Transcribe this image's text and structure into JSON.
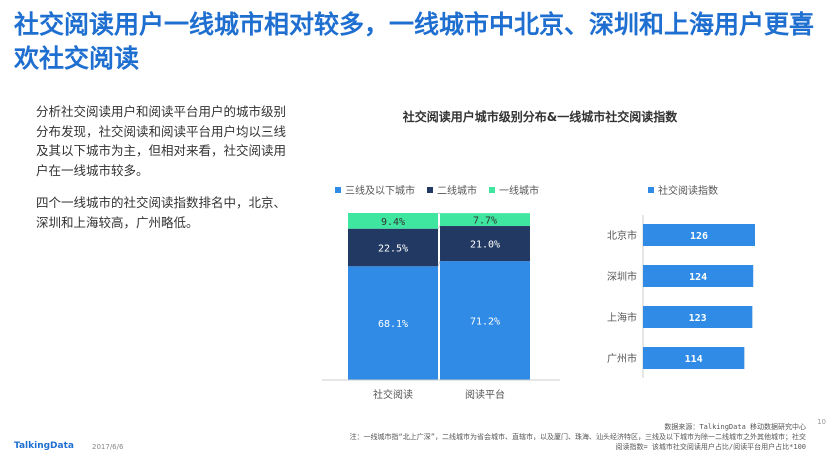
{
  "title": "社交阅读用户一线城市相对较多，一线城市中北京、深圳和上海用户更喜欢社交阅读",
  "description": [
    "分析社交阅读用户和阅读平台用户的城市级别分布发现，社交阅读和阅读平台用户均以三线及其以下城市为主，但相对来看，社交阅读用户在一线城市较多。",
    "四个一线城市的社交阅读指数排名中，北京、深圳和上海较高，广州略低。"
  ],
  "chart_title": "社交阅读用户城市级别分布&一线城市社交阅读指数",
  "colors": {
    "tier3": "#2f8be6",
    "tier2": "#223a63",
    "tier1": "#3ee6a0",
    "index": "#2f8be6",
    "title": "#1f6fd1"
  },
  "chart_data": [
    {
      "type": "bar",
      "stacked": true,
      "categories": [
        "社交阅读",
        "阅读平台"
      ],
      "series": [
        {
          "name": "三线及以下城市",
          "values": [
            68.1,
            71.2
          ],
          "labels": [
            "68.1%",
            "71.2%"
          ]
        },
        {
          "name": "二线城市",
          "values": [
            22.5,
            21.0
          ],
          "labels": [
            "22.5%",
            "21.0%"
          ]
        },
        {
          "name": "一线城市",
          "values": [
            9.4,
            7.7
          ],
          "labels": [
            "9.4%",
            "7.7%"
          ]
        }
      ],
      "ylim": [
        0,
        100
      ],
      "legend_position": "top"
    },
    {
      "type": "bar",
      "orientation": "horizontal",
      "categories": [
        "北京市",
        "深圳市",
        "上海市",
        "广州市"
      ],
      "series": [
        {
          "name": "社交阅读指数",
          "values": [
            126,
            124,
            123,
            114
          ]
        }
      ],
      "legend_position": "top"
    }
  ],
  "footer": {
    "source": "数据来源：TalkingData 移动数据研究中心",
    "note1": "注：一线城市指“北上广深”，二线城市为省会城市、直辖市，以及厦门、珠海、汕头经济特区，三线及以下城市为除一二线城市之外其他城市；社交",
    "note2": "阅读指数= 该城市社交阅读用户占比/阅读平台用户占比*100",
    "brand": "TalkingData",
    "date": "2017/6/6",
    "page": "10"
  }
}
